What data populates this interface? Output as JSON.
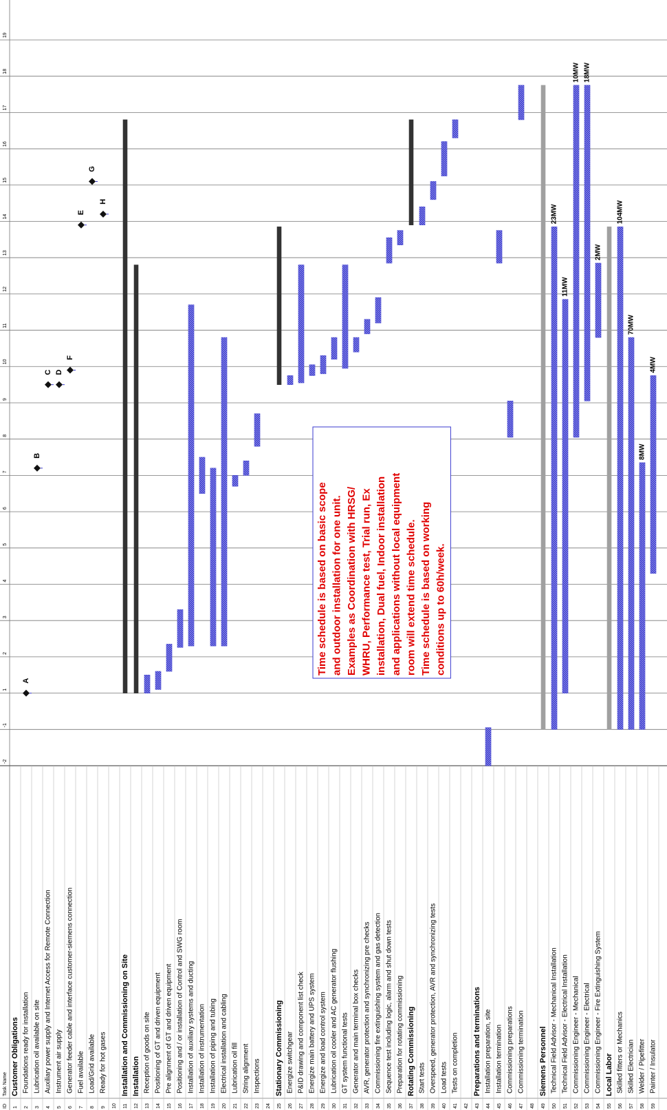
{
  "chart_data": {
    "type": "gantt",
    "columns": [
      "ID",
      "Task Name"
    ],
    "xlim": [
      0,
      21.1
    ],
    "xticks": [
      {
        "value": 0,
        "label": "-2"
      },
      {
        "value": 1,
        "label": "-1"
      },
      {
        "value": 2,
        "label": "1"
      },
      {
        "value": 3,
        "label": "2"
      },
      {
        "value": 4,
        "label": "3"
      },
      {
        "value": 5,
        "label": "4"
      },
      {
        "value": 6,
        "label": "5"
      },
      {
        "value": 7,
        "label": "6"
      },
      {
        "value": 8,
        "label": "7"
      },
      {
        "value": 9,
        "label": "8"
      },
      {
        "value": 10,
        "label": "9"
      },
      {
        "value": 11,
        "label": "10"
      },
      {
        "value": 12,
        "label": "11"
      },
      {
        "value": 13,
        "label": "12"
      },
      {
        "value": 14,
        "label": "13"
      },
      {
        "value": 15,
        "label": "14"
      },
      {
        "value": 16,
        "label": "15"
      },
      {
        "value": 17,
        "label": "16"
      },
      {
        "value": 18,
        "label": "17"
      },
      {
        "value": 19,
        "label": "18"
      },
      {
        "value": 20,
        "label": "19"
      }
    ],
    "grid": true,
    "tasks": [
      {
        "id": 1,
        "name": "Customer Obligations",
        "summary": true
      },
      {
        "id": 2,
        "name": "Foundations ready for installation",
        "milestone": 2.0,
        "milestone_label": "A"
      },
      {
        "id": 3,
        "name": "Lubrication oil available on site",
        "milestone": 8.2,
        "milestone_label": "B"
      },
      {
        "id": 4,
        "name": "Auxiliary power supply and Internet Access for Remote Connection",
        "milestone": 10.5,
        "milestone_label": "C"
      },
      {
        "id": 5,
        "name": "Instrument air supply",
        "milestone": 10.5,
        "milestone_label": "D"
      },
      {
        "id": 6,
        "name": "Generator feeder cable and interface customer-siemens connection",
        "milestone": 10.9,
        "milestone_label": "F"
      },
      {
        "id": 7,
        "name": "Fuel available",
        "milestone": 14.9,
        "milestone_label": "E"
      },
      {
        "id": 8,
        "name": "Load/Grid available",
        "milestone": 16.1,
        "milestone_label": "G"
      },
      {
        "id": 9,
        "name": "Ready for hot gases",
        "milestone": 15.2,
        "milestone_label": "H"
      },
      {
        "id": 10,
        "name": null
      },
      {
        "id": 11,
        "name": "Installation and Commissioning on Site",
        "summary": true,
        "start": 2.0,
        "end": 17.8,
        "color": "#333333"
      },
      {
        "id": 12,
        "name": "Installation",
        "summary": true,
        "start": 2.0,
        "end": 13.8,
        "color": "#333333"
      },
      {
        "id": 13,
        "name": "Reception of goods on site",
        "start": 2.0,
        "end": 2.5,
        "color": "#3a3acf"
      },
      {
        "id": 14,
        "name": "Positioning of GT and driven equipment",
        "start": 2.1,
        "end": 2.6,
        "color": "#3a3acf"
      },
      {
        "id": 15,
        "name": "Pre alignment of GT and driven equipment",
        "start": 2.6,
        "end": 3.35,
        "color": "#3a3acf"
      },
      {
        "id": 16,
        "name": "Positioning and / or installation of Control and SWG room",
        "start": 3.26,
        "end": 4.3,
        "color": "#3a3acf"
      },
      {
        "id": 17,
        "name": "Installation of auxiliary systems and ducting",
        "start": 3.3,
        "end": 12.7,
        "color": "#3a3acf"
      },
      {
        "id": 18,
        "name": "Installation of instrumentation",
        "start": 7.5,
        "end": 8.5,
        "color": "#3a3acf"
      },
      {
        "id": 19,
        "name": "Installation of piping and tubing",
        "start": 3.3,
        "end": 8.2,
        "color": "#3a3acf"
      },
      {
        "id": 20,
        "name": "Electrical installation and cabling",
        "start": 3.3,
        "end": 11.8,
        "color": "#3a3acf"
      },
      {
        "id": 21,
        "name": "Lubrication oil fill",
        "start": 7.7,
        "end": 8.0,
        "color": "#3a3acf"
      },
      {
        "id": 22,
        "name": "String alignment",
        "start": 8.0,
        "end": 8.4,
        "color": "#3a3acf"
      },
      {
        "id": 23,
        "name": "Inspections",
        "start": 8.8,
        "end": 9.7,
        "color": "#3a3acf"
      },
      {
        "id": 24,
        "name": null
      },
      {
        "id": 25,
        "name": "Stationary Commissioning",
        "summary": true,
        "start": 10.5,
        "end": 14.85,
        "color": "#333333"
      },
      {
        "id": 26,
        "name": "Energize switchgear",
        "start": 10.5,
        "end": 10.75,
        "color": "#3a3acf"
      },
      {
        "id": 27,
        "name": "P&ID drawing and component list check",
        "start": 10.55,
        "end": 13.8,
        "color": "#3a3acf"
      },
      {
        "id": 28,
        "name": "Energize main battery and UPS system",
        "start": 10.75,
        "end": 11.05,
        "color": "#3a3acf"
      },
      {
        "id": 29,
        "name": "Energize and load control system",
        "start": 10.8,
        "end": 11.3,
        "color": "#3a3acf"
      },
      {
        "id": 30,
        "name": "Lubrication oil cooler and AC generator flushing",
        "start": 11.2,
        "end": 11.8,
        "color": "#3a3acf"
      },
      {
        "id": 31,
        "name": "GT system functional tests",
        "start": 10.95,
        "end": 13.8,
        "color": "#3a3acf"
      },
      {
        "id": 32,
        "name": "Generator and main terminal box checks",
        "start": 11.4,
        "end": 11.8,
        "color": "#3a3acf"
      },
      {
        "id": 33,
        "name": "AVR, generator protection and synchronizing pre checks",
        "start": 11.9,
        "end": 12.3,
        "color": "#3a3acf"
      },
      {
        "id": 34,
        "name": "Commissioning fire extinguishing system and gas detection",
        "start": 12.2,
        "end": 12.9,
        "color": "#3a3acf"
      },
      {
        "id": 35,
        "name": "Sequence test including logic, alarm and shut down tests",
        "start": 13.85,
        "end": 14.55,
        "color": "#3a3acf"
      },
      {
        "id": 36,
        "name": "Preparation for rotating commissioning",
        "start": 14.35,
        "end": 14.75,
        "color": "#3a3acf"
      },
      {
        "id": 37,
        "name": "Rotating Commissioning",
        "summary": true,
        "start": 14.9,
        "end": 17.8,
        "color": "#333333"
      },
      {
        "id": 38,
        "name": "Start tests",
        "start": 14.9,
        "end": 15.4,
        "color": "#3a3acf"
      },
      {
        "id": 39,
        "name": "Overspeed, generator protection, AVR and synchronizing tests",
        "start": 15.6,
        "end": 16.1,
        "color": "#3a3acf"
      },
      {
        "id": 40,
        "name": "Load tests",
        "start": 16.25,
        "end": 17.2,
        "color": "#3a3acf"
      },
      {
        "id": 41,
        "name": "Tests on completion",
        "start": 17.3,
        "end": 17.8,
        "color": "#3a3acf"
      },
      {
        "id": 42,
        "name": null
      },
      {
        "id": 43,
        "name": "Preparations and terminations",
        "summary": true
      },
      {
        "id": 44,
        "name": "Installation preparation, site",
        "start": 0.0,
        "end": 1.05,
        "color": "#3a3acf"
      },
      {
        "id": 45,
        "name": "Installation termination",
        "start": 13.85,
        "end": 14.75,
        "color": "#3a3acf"
      },
      {
        "id": 46,
        "name": "Commissioning preparations",
        "start": 9.05,
        "end": 10.05,
        "color": "#3a3acf"
      },
      {
        "id": 47,
        "name": "Commissioning termination",
        "start": 17.8,
        "end": 18.75,
        "color": "#3a3acf"
      },
      {
        "id": 48,
        "name": null
      },
      {
        "id": 49,
        "name": "Siemens Personnel",
        "summary": true,
        "start": 1.0,
        "end": 18.75,
        "color": "#a0a0a0"
      },
      {
        "id": 50,
        "name": "Technical Field Advisor - Mechanical Installation",
        "start": 1.0,
        "end": 14.85,
        "color": "#3a3acf",
        "resource_label": "23MW"
      },
      {
        "id": 51,
        "name": "Technical Field Advisor - Electrical Installation",
        "start": 2.0,
        "end": 12.85,
        "color": "#3a3acf",
        "resource_label": "11MW"
      },
      {
        "id": 52,
        "name": "Commissioning Engineer - Mechanical",
        "start": 9.05,
        "end": 18.75,
        "color": "#3a3acf",
        "resource_label": "10MW"
      },
      {
        "id": 53,
        "name": "Commissioning Engineer - Electrical",
        "start": 10.05,
        "end": 18.75,
        "color": "#3a3acf",
        "resource_label": "18MW"
      },
      {
        "id": 54,
        "name": "Commissioning Engineer - Fire Extinguishing System",
        "start": 11.8,
        "end": 13.85,
        "color": "#3a3acf",
        "resource_label": "2MW"
      },
      {
        "id": 55,
        "name": "Local Labor",
        "summary": true,
        "start": 1.0,
        "end": 14.85,
        "color": "#a0a0a0"
      },
      {
        "id": 56,
        "name": "Skilled fitters or Mechanics",
        "start": 1.0,
        "end": 14.85,
        "color": "#3a3acf",
        "resource_label": "104MW"
      },
      {
        "id": 57,
        "name": "Skilled Electrician",
        "start": 1.0,
        "end": 11.8,
        "color": "#3a3acf",
        "resource_label": "70MW"
      },
      {
        "id": 58,
        "name": "Welder / Pipefitter",
        "start": 1.0,
        "end": 8.35,
        "color": "#3a3acf",
        "resource_label": "8MW"
      },
      {
        "id": 59,
        "name": "Painter / Insulator",
        "start": 5.3,
        "end": 10.75,
        "color": "#3a3acf",
        "resource_label": "4MW"
      }
    ],
    "annotation": [
      "Time schedule is based on basic scope",
      "and outdoor installation for one unit.",
      "Examples as Coordination with HRSG/",
      "WHRU, Performance test, Trial run, Ex",
      "installation, Dual fuel, Indoor installation",
      "and applications without local equipment",
      "room will extend time schedule.",
      "Time schedule is based on working",
      "conditions up to 60h/week."
    ],
    "annotation_color": "#e00000"
  }
}
